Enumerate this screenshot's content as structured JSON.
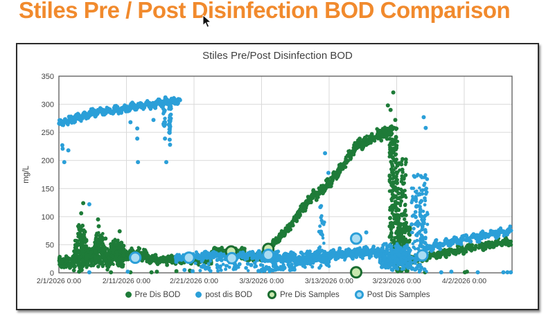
{
  "page_title": "Stiles Pre / Post Disinfection BOD Comparison",
  "colors": {
    "title_orange": "#f18a2d",
    "axis_text": "#404040",
    "gridline": "#d9d9d9",
    "plot_border": "#595959",
    "pre_green": "#1e7b38",
    "post_blue": "#2b9fd8",
    "pre_sample_ring": "#1a6c2f",
    "pre_sample_fill": "#c8e8ae",
    "post_sample_ring": "#2b9fd8",
    "post_sample_fill": "#a9dcf2"
  },
  "chart_data": {
    "type": "scatter",
    "title": "Stiles Pre/Post Disinfection BOD",
    "xlabel": "",
    "ylabel": "mg/L",
    "ylim": [
      0,
      350
    ],
    "y_ticks": [
      0,
      50,
      100,
      150,
      200,
      250,
      300,
      350
    ],
    "x_tick_days": [
      0,
      10,
      20,
      30,
      40,
      50,
      60
    ],
    "x_tick_labels": [
      "2/1/2026 0:00",
      "2/11/2026 0:00",
      "2/21/2026 0:00",
      "3/3/2026 0:00",
      "3/13/2026 0:00",
      "3/23/2026 0:00",
      "4/2/2026 0:00"
    ],
    "x_max_day": 67.08,
    "grid": true,
    "legend_position": "bottom",
    "series": [
      {
        "name": "Pre Dis BOD",
        "marker": "dot",
        "color": "#1e7b38",
        "segments": [
          [
            0.0,
            2.4,
            16,
            20,
            13,
            110,
            4
          ],
          [
            2.2,
            4.2,
            32,
            32,
            32,
            140,
            0
          ],
          [
            2.8,
            3.9,
            70,
            62,
            20,
            45,
            0
          ],
          [
            4.0,
            5.4,
            25,
            28,
            20,
            90,
            3
          ],
          [
            5.3,
            6.6,
            45,
            40,
            38,
            110,
            0
          ],
          [
            6.5,
            8.0,
            28,
            26,
            22,
            90,
            3
          ],
          [
            7.9,
            9.6,
            35,
            30,
            28,
            110,
            0
          ],
          [
            9.5,
            13.0,
            31,
            33,
            11,
            130,
            3
          ],
          [
            13.0,
            18.0,
            25,
            22,
            8,
            150,
            2
          ],
          [
            18.0,
            22.6,
            23,
            21,
            7,
            110,
            2
          ],
          [
            22.6,
            24.5,
            40,
            38,
            6,
            50,
            2
          ],
          [
            24.8,
            27.5,
            40,
            38,
            7,
            60,
            2
          ],
          [
            27.0,
            30.0,
            27,
            26,
            6,
            60,
            2
          ],
          [
            30.0,
            32.0,
            26,
            55,
            7,
            70,
            2
          ],
          [
            32.0,
            34.0,
            55,
            80,
            8,
            75,
            2
          ],
          [
            34.0,
            37.0,
            80,
            130,
            9,
            100,
            3
          ],
          [
            37.0,
            40.0,
            130,
            158,
            9,
            100,
            3
          ],
          [
            40.0,
            44.0,
            158,
            225,
            10,
            130,
            3
          ],
          [
            44.0,
            47.0,
            225,
            243,
            10,
            110,
            2
          ],
          [
            47.0,
            49.4,
            243,
            252,
            12,
            90,
            2
          ],
          [
            51.8,
            54.0,
            24,
            24,
            9,
            60,
            2
          ],
          [
            54.0,
            67.0,
            29,
            57,
            8,
            240,
            2
          ]
        ],
        "columns": [
          [
            48.9,
            50.2,
            30,
            262,
            200
          ],
          [
            49.8,
            51.4,
            2,
            205,
            150
          ],
          [
            50.2,
            52.0,
            2,
            85,
            90
          ]
        ],
        "outliers": [
          [
            3.3,
            106
          ],
          [
            3.6,
            124
          ],
          [
            5.8,
            95
          ],
          [
            5.9,
            83
          ],
          [
            6.9,
            61
          ],
          [
            7.7,
            51
          ],
          [
            9.0,
            74
          ],
          [
            7.7,
            1
          ],
          [
            10.6,
            1
          ],
          [
            13.7,
            1
          ],
          [
            14.5,
            2
          ],
          [
            17.4,
            3
          ],
          [
            19.4,
            4
          ],
          [
            48.7,
            298
          ],
          [
            49.1,
            290
          ],
          [
            49.5,
            321
          ],
          [
            49.8,
            272
          ],
          [
            54.2,
            1
          ],
          [
            60.1,
            1
          ],
          [
            60.4,
            2
          ]
        ]
      },
      {
        "name": "post dis BOD",
        "marker": "dot",
        "color": "#2b9fd8",
        "segments": [
          [
            0.0,
            1.5,
            266,
            270,
            5,
            80,
            2
          ],
          [
            1.5,
            5.0,
            272,
            284,
            6,
            140,
            3
          ],
          [
            5.0,
            10.0,
            285,
            292,
            6,
            190,
            3
          ],
          [
            10.0,
            14.0,
            293,
            300,
            6,
            160,
            3
          ],
          [
            14.0,
            18.0,
            301,
            307,
            6,
            160,
            3
          ],
          [
            17.3,
            20.0,
            27,
            29,
            7,
            80,
            2
          ],
          [
            20.0,
            30.0,
            30,
            30,
            8,
            230,
            3
          ],
          [
            20.0,
            30.0,
            11,
            10,
            9,
            45,
            0
          ],
          [
            30.0,
            35.0,
            27,
            27,
            10,
            190,
            3
          ],
          [
            30.0,
            35.0,
            8,
            8,
            8,
            55,
            0
          ],
          [
            35.0,
            40.0,
            24,
            26,
            13,
            230,
            3
          ],
          [
            40.0,
            44.0,
            32,
            35,
            9,
            170,
            3
          ],
          [
            44.0,
            47.5,
            36,
            37,
            9,
            160,
            3
          ],
          [
            47.5,
            52.2,
            27,
            27,
            26,
            300,
            0
          ],
          [
            54.5,
            67.0,
            46,
            76,
            7,
            260,
            3
          ]
        ],
        "columns": [
          [
            52.2,
            54.6,
            1,
            175,
            150
          ],
          [
            38.5,
            39.3,
            2,
            120,
            26
          ],
          [
            16.25,
            16.6,
            248,
            304,
            36
          ],
          [
            15.45,
            15.75,
            258,
            302,
            20
          ]
        ],
        "outliers": [
          [
            0.5,
            227
          ],
          [
            0.55,
            221
          ],
          [
            1.4,
            218
          ],
          [
            0.8,
            197
          ],
          [
            4.5,
            122
          ],
          [
            4.5,
            1
          ],
          [
            10.2,
            2
          ],
          [
            10.6,
            268
          ],
          [
            11.6,
            257
          ],
          [
            11.6,
            239
          ],
          [
            11.7,
            197
          ],
          [
            14.0,
            272
          ],
          [
            15.7,
            268
          ],
          [
            15.7,
            239
          ],
          [
            16.4,
            237
          ],
          [
            16.45,
            228
          ],
          [
            15.9,
            197
          ],
          [
            39.4,
            213
          ],
          [
            39.9,
            178
          ],
          [
            38.7,
            117
          ],
          [
            45.5,
            72
          ],
          [
            54.0,
            277
          ],
          [
            54.3,
            258
          ],
          [
            18.6,
            5
          ],
          [
            19.8,
            3
          ],
          [
            56.6,
            1
          ],
          [
            58.1,
            2
          ],
          [
            62.0,
            1
          ],
          [
            65.8,
            1
          ],
          [
            66.4,
            1
          ],
          [
            66.9,
            1
          ]
        ]
      },
      {
        "name": "Pre Dis Samples",
        "marker": "ring",
        "color": "#1a6c2f",
        "fill": "#c8e8ae",
        "points": [
          [
            25.5,
            38
          ],
          [
            31.0,
            42.5
          ],
          [
            44.0,
            1
          ]
        ]
      },
      {
        "name": "Post Dis Samples",
        "marker": "ring",
        "color": "#2b9fd8",
        "fill": "#a9dcf2",
        "points": [
          [
            11.3,
            27
          ],
          [
            19.25,
            27
          ],
          [
            25.6,
            26
          ],
          [
            31.0,
            32
          ],
          [
            44.0,
            61
          ],
          [
            53.8,
            31
          ]
        ]
      }
    ]
  }
}
